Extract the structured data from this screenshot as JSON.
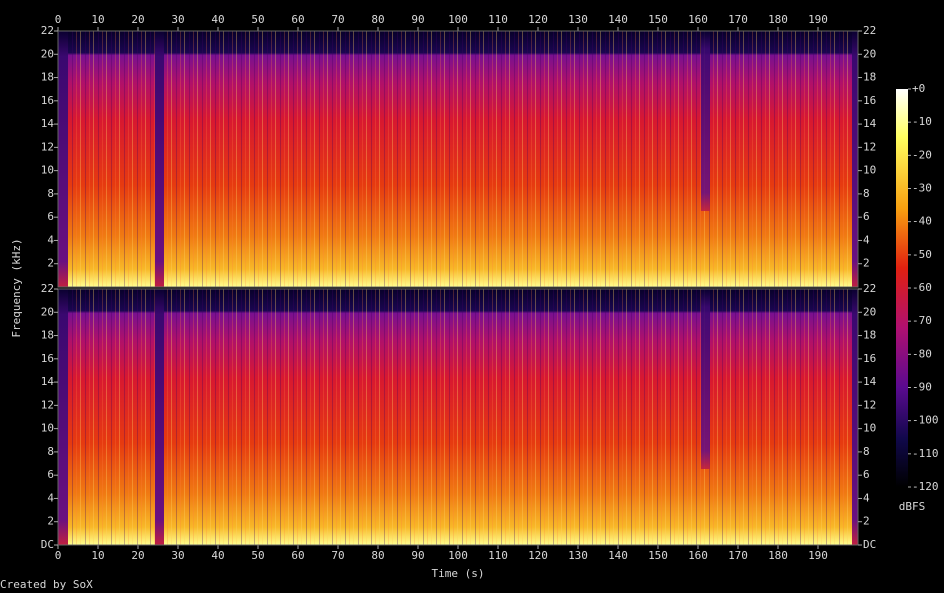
{
  "chart_data": {
    "type": "spectrogram",
    "x_label": "Time (s)",
    "y_label": "Frequency (kHz)",
    "xlim": [
      0,
      200
    ],
    "xticks": [
      0,
      10,
      20,
      30,
      40,
      50,
      60,
      70,
      80,
      90,
      100,
      110,
      120,
      130,
      140,
      150,
      160,
      170,
      180,
      190
    ],
    "panels": [
      {
        "ylim": [
          0,
          22
        ],
        "yticks": [
          2,
          4,
          6,
          8,
          10,
          12,
          14,
          16,
          18,
          20,
          22
        ]
      },
      {
        "ylim": [
          0,
          22
        ],
        "yticks": [
          {
            "value": 0,
            "label": "DC"
          },
          2,
          4,
          6,
          8,
          10,
          12,
          14,
          16,
          18,
          20,
          22
        ]
      }
    ],
    "colorbar": {
      "label": "dBFS",
      "lim": [
        -120,
        0
      ],
      "ticks": [
        {
          "value": 0,
          "label": "+0"
        },
        -10,
        -20,
        -30,
        -40,
        -50,
        -60,
        -70,
        -80,
        -90,
        -100,
        -110,
        -120
      ]
    }
  },
  "credit": "Created by SoX"
}
